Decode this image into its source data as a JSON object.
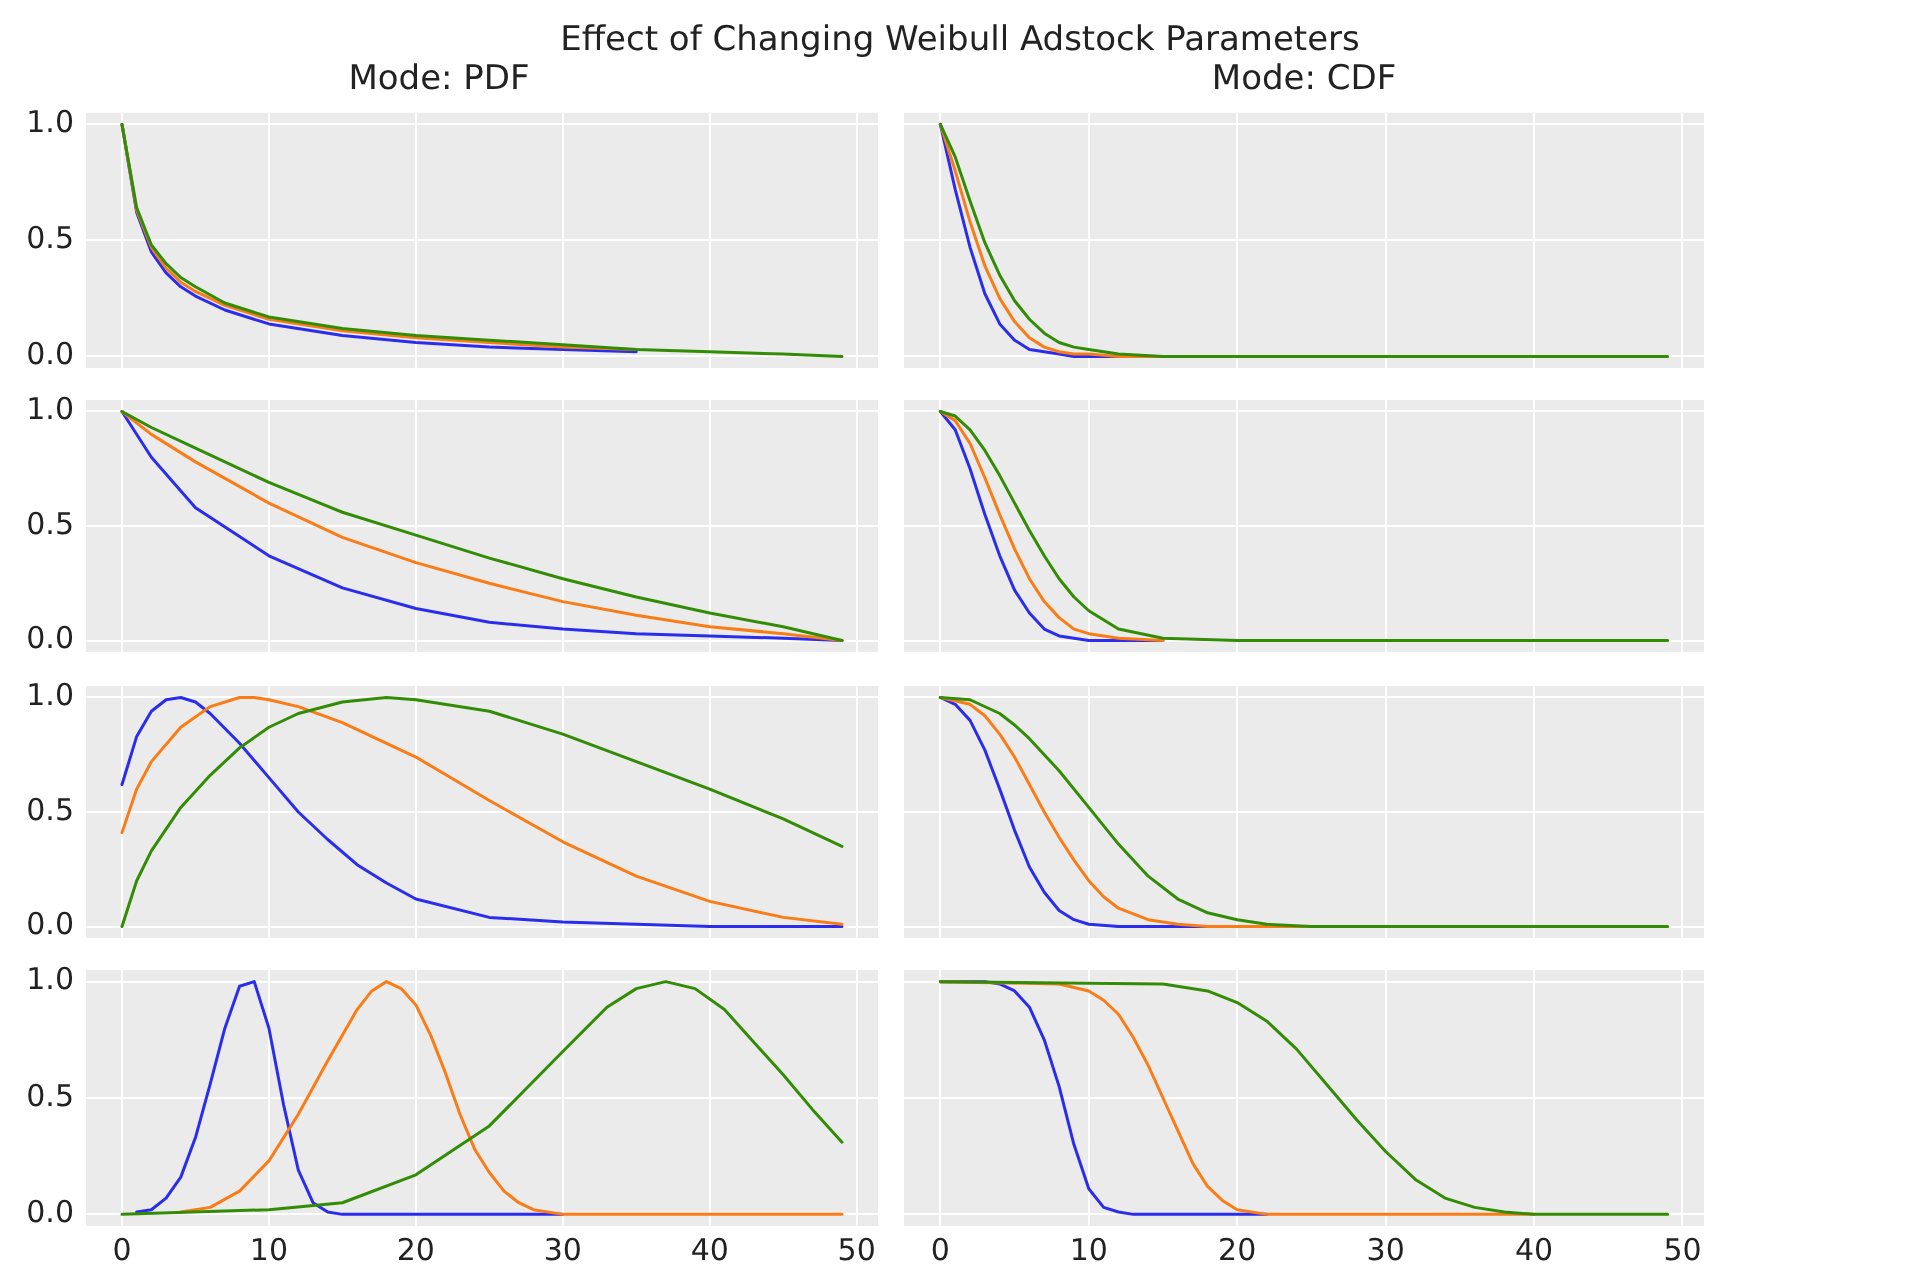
{
  "chart_data": [
    {
      "type": "line",
      "title": "Effect of Changing Weibull Adstock Parameters",
      "subtitle": "Mode: PDF",
      "xlim": [
        -2.45,
        51.45
      ],
      "ylim": [
        -0.05,
        1.05
      ],
      "xticks": [
        {
          "value": 0,
          "label": null
        },
        {
          "value": 10,
          "label": null
        },
        {
          "value": 20,
          "label": null
        },
        {
          "value": 30,
          "label": null
        },
        {
          "value": 40,
          "label": null
        },
        {
          "value": 50,
          "label": null
        }
      ],
      "yticks": [
        {
          "value": 0,
          "label": "0.0"
        },
        {
          "value": 0.5,
          "label": "0.5"
        },
        {
          "value": 1,
          "label": "1.0"
        }
      ],
      "grid": true,
      "legend": false,
      "marker": "none",
      "line_style": "solid",
      "tick_labels": "y",
      "x": [
        0,
        1,
        2,
        3,
        4,
        5,
        7,
        10,
        15,
        20,
        25,
        30,
        35,
        40,
        45,
        49
      ],
      "series": [
        {
          "color": "#2a2eec",
          "values": [
            1,
            0.62,
            0.45,
            0.36,
            0.3,
            0.26,
            0.2,
            0.14,
            0.09,
            0.06,
            0.04,
            0.03,
            0.02,
            null,
            null,
            null
          ]
        },
        {
          "color": "#fa7c17",
          "values": [
            1,
            0.63,
            0.47,
            0.38,
            0.32,
            0.28,
            0.22,
            0.16,
            0.11,
            0.08,
            0.06,
            0.04,
            0.03,
            null,
            null,
            null
          ]
        },
        {
          "color": "#328c06",
          "values": [
            1,
            0.64,
            0.48,
            0.4,
            0.34,
            0.3,
            0.23,
            0.17,
            0.12,
            0.09,
            0.07,
            0.05,
            0.03,
            0.02,
            0.01,
            0
          ]
        }
      ]
    },
    {
      "type": "line",
      "title": "Mode: CDF",
      "xlim": [
        -2.45,
        51.45
      ],
      "ylim": [
        -0.05,
        1.05
      ],
      "xticks": [
        {
          "value": 0,
          "label": null
        },
        {
          "value": 10,
          "label": null
        },
        {
          "value": 20,
          "label": null
        },
        {
          "value": 30,
          "label": null
        },
        {
          "value": 40,
          "label": null
        },
        {
          "value": 50,
          "label": null
        }
      ],
      "yticks": [
        {
          "value": 0,
          "label": null
        },
        {
          "value": 0.5,
          "label": null
        },
        {
          "value": 1,
          "label": null
        }
      ],
      "grid": true,
      "legend": false,
      "marker": "none",
      "line_style": "solid",
      "tick_labels": false,
      "x": [
        0,
        1,
        2,
        3,
        4,
        5,
        6,
        7,
        8,
        9,
        10,
        12,
        15,
        20,
        30,
        40,
        49
      ],
      "series": [
        {
          "color": "#2a2eec",
          "values": [
            1,
            0.72,
            0.47,
            0.27,
            0.14,
            0.07,
            0.03,
            0.02,
            0.01,
            0,
            0,
            0,
            0,
            null,
            null,
            null,
            null
          ]
        },
        {
          "color": "#fa7c17",
          "values": [
            1,
            0.8,
            0.58,
            0.39,
            0.25,
            0.15,
            0.08,
            0.04,
            0.02,
            0.01,
            0.01,
            0,
            0,
            null,
            null,
            null,
            null
          ]
        },
        {
          "color": "#328c06",
          "values": [
            1,
            0.86,
            0.67,
            0.49,
            0.35,
            0.24,
            0.16,
            0.1,
            0.06,
            0.04,
            0.03,
            0.01,
            0,
            0,
            0,
            0,
            0
          ]
        }
      ]
    },
    {
      "type": "line",
      "xlim": [
        -2.45,
        51.45
      ],
      "ylim": [
        -0.05,
        1.05
      ],
      "xticks": [
        {
          "value": 0,
          "label": null
        },
        {
          "value": 10,
          "label": null
        },
        {
          "value": 20,
          "label": null
        },
        {
          "value": 30,
          "label": null
        },
        {
          "value": 40,
          "label": null
        },
        {
          "value": 50,
          "label": null
        }
      ],
      "yticks": [
        {
          "value": 0,
          "label": "0.0"
        },
        {
          "value": 0.5,
          "label": "0.5"
        },
        {
          "value": 1,
          "label": "1.0"
        }
      ],
      "grid": true,
      "legend": false,
      "marker": "none",
      "line_style": "solid",
      "tick_labels": "y",
      "x": [
        0,
        2,
        5,
        10,
        15,
        20,
        25,
        30,
        35,
        40,
        45,
        49
      ],
      "series": [
        {
          "color": "#2a2eec",
          "values": [
            1,
            0.8,
            0.58,
            0.37,
            0.23,
            0.14,
            0.08,
            0.05,
            0.03,
            0.02,
            0.01,
            0
          ]
        },
        {
          "color": "#fa7c17",
          "values": [
            1,
            0.9,
            0.78,
            0.6,
            0.45,
            0.34,
            0.25,
            0.17,
            0.11,
            0.06,
            0.03,
            0
          ]
        },
        {
          "color": "#328c06",
          "values": [
            1,
            0.93,
            0.84,
            0.69,
            0.56,
            0.46,
            0.36,
            0.27,
            0.19,
            0.12,
            0.06,
            0
          ]
        }
      ]
    },
    {
      "type": "line",
      "xlim": [
        -2.45,
        51.45
      ],
      "ylim": [
        -0.05,
        1.05
      ],
      "xticks": [
        {
          "value": 0,
          "label": null
        },
        {
          "value": 10,
          "label": null
        },
        {
          "value": 20,
          "label": null
        },
        {
          "value": 30,
          "label": null
        },
        {
          "value": 40,
          "label": null
        },
        {
          "value": 50,
          "label": null
        }
      ],
      "yticks": [
        {
          "value": 0,
          "label": null
        },
        {
          "value": 0.5,
          "label": null
        },
        {
          "value": 1,
          "label": null
        }
      ],
      "grid": true,
      "legend": false,
      "marker": "none",
      "line_style": "solid",
      "tick_labels": false,
      "x": [
        0,
        1,
        2,
        3,
        4,
        5,
        6,
        7,
        8,
        9,
        10,
        12,
        15,
        20,
        30,
        40,
        49
      ],
      "series": [
        {
          "color": "#2a2eec",
          "values": [
            1,
            0.92,
            0.75,
            0.55,
            0.37,
            0.22,
            0.12,
            0.05,
            0.02,
            0.01,
            0,
            0,
            0,
            null,
            null,
            null,
            null
          ]
        },
        {
          "color": "#fa7c17",
          "values": [
            1,
            0.96,
            0.86,
            0.71,
            0.55,
            0.4,
            0.27,
            0.17,
            0.1,
            0.05,
            0.03,
            0.01,
            0,
            null,
            null,
            null,
            null
          ]
        },
        {
          "color": "#328c06",
          "values": [
            1,
            0.98,
            0.92,
            0.83,
            0.72,
            0.6,
            0.48,
            0.37,
            0.27,
            0.19,
            0.13,
            0.05,
            0.01,
            0,
            0,
            0,
            0
          ]
        }
      ]
    },
    {
      "type": "line",
      "xlim": [
        -2.45,
        51.45
      ],
      "ylim": [
        -0.05,
        1.05
      ],
      "xticks": [
        {
          "value": 0,
          "label": null
        },
        {
          "value": 10,
          "label": null
        },
        {
          "value": 20,
          "label": null
        },
        {
          "value": 30,
          "label": null
        },
        {
          "value": 40,
          "label": null
        },
        {
          "value": 50,
          "label": null
        }
      ],
      "yticks": [
        {
          "value": 0,
          "label": "0.0"
        },
        {
          "value": 0.5,
          "label": "0.5"
        },
        {
          "value": 1,
          "label": "1.0"
        }
      ],
      "grid": true,
      "legend": false,
      "marker": "none",
      "line_style": "solid",
      "tick_labels": "y",
      "series": [
        {
          "color": "#2a2eec",
          "x": [
            0,
            1,
            2,
            3,
            4,
            5,
            6,
            8,
            10,
            12,
            14,
            16,
            18,
            20,
            25,
            30,
            35,
            40,
            49
          ],
          "values": [
            0.62,
            0.83,
            0.94,
            0.99,
            1,
            0.98,
            0.93,
            0.8,
            0.65,
            0.5,
            0.38,
            0.27,
            0.19,
            0.12,
            0.04,
            0.02,
            0.01,
            0,
            0
          ]
        },
        {
          "color": "#fa7c17",
          "x": [
            0,
            1,
            2,
            4,
            6,
            8,
            9,
            10,
            12,
            15,
            20,
            25,
            30,
            35,
            40,
            45,
            49
          ],
          "values": [
            0.41,
            0.6,
            0.72,
            0.87,
            0.96,
            1,
            1,
            0.99,
            0.96,
            0.89,
            0.74,
            0.55,
            0.37,
            0.22,
            0.11,
            0.04,
            0.01
          ]
        },
        {
          "color": "#328c06",
          "x": [
            0,
            1,
            2,
            4,
            6,
            8,
            10,
            12,
            15,
            18,
            20,
            25,
            30,
            35,
            40,
            45,
            49
          ],
          "values": [
            0,
            0.2,
            0.33,
            0.52,
            0.66,
            0.78,
            0.87,
            0.93,
            0.98,
            1,
            0.99,
            0.94,
            0.84,
            0.72,
            0.6,
            0.47,
            0.35
          ]
        }
      ]
    },
    {
      "type": "line",
      "xlim": [
        -2.45,
        51.45
      ],
      "ylim": [
        -0.05,
        1.05
      ],
      "xticks": [
        {
          "value": 0,
          "label": null
        },
        {
          "value": 10,
          "label": null
        },
        {
          "value": 20,
          "label": null
        },
        {
          "value": 30,
          "label": null
        },
        {
          "value": 40,
          "label": null
        },
        {
          "value": 50,
          "label": null
        }
      ],
      "yticks": [
        {
          "value": 0,
          "label": null
        },
        {
          "value": 0.5,
          "label": null
        },
        {
          "value": 1,
          "label": null
        }
      ],
      "grid": true,
      "legend": false,
      "marker": "none",
      "line_style": "solid",
      "tick_labels": false,
      "series": [
        {
          "color": "#2a2eec",
          "x": [
            0,
            1,
            2,
            3,
            4,
            5,
            6,
            7,
            8,
            9,
            10,
            12,
            18
          ],
          "values": [
            1,
            0.97,
            0.9,
            0.77,
            0.6,
            0.42,
            0.26,
            0.15,
            0.07,
            0.03,
            0.01,
            0,
            0
          ]
        },
        {
          "color": "#fa7c17",
          "x": [
            0,
            2,
            3,
            4,
            5,
            6,
            7,
            8,
            9,
            10,
            11,
            12,
            14,
            16,
            18,
            25
          ],
          "values": [
            1,
            0.97,
            0.92,
            0.84,
            0.74,
            0.62,
            0.5,
            0.39,
            0.29,
            0.2,
            0.13,
            0.08,
            0.03,
            0.01,
            0,
            0
          ]
        },
        {
          "color": "#328c06",
          "x": [
            0,
            2,
            4,
            5,
            6,
            8,
            10,
            12,
            14,
            16,
            18,
            20,
            22,
            25,
            49
          ],
          "values": [
            1,
            0.99,
            0.93,
            0.88,
            0.82,
            0.68,
            0.52,
            0.36,
            0.22,
            0.12,
            0.06,
            0.03,
            0.01,
            0,
            0
          ]
        }
      ]
    },
    {
      "type": "line",
      "xlim": [
        -2.45,
        51.45
      ],
      "ylim": [
        -0.05,
        1.05
      ],
      "xticks": [
        0,
        10,
        20,
        30,
        40,
        50
      ],
      "yticks": [
        {
          "value": 0,
          "label": "0.0"
        },
        {
          "value": 0.5,
          "label": "0.5"
        },
        {
          "value": 1,
          "label": "1.0"
        }
      ],
      "grid": true,
      "legend": false,
      "marker": "none",
      "line_style": "solid",
      "series": [
        {
          "color": "#2a2eec",
          "x": [
            1,
            2,
            3,
            4,
            5,
            6,
            7,
            8,
            9,
            10,
            11,
            12,
            13,
            14,
            15,
            30
          ],
          "values": [
            0.01,
            0.02,
            0.07,
            0.16,
            0.33,
            0.56,
            0.8,
            0.98,
            1,
            0.8,
            0.47,
            0.19,
            0.05,
            0.01,
            0,
            0
          ]
        },
        {
          "color": "#fa7c17",
          "x": [
            4,
            6,
            8,
            10,
            12,
            14,
            16,
            17,
            18,
            19,
            20,
            21,
            22,
            23,
            24,
            25,
            26,
            27,
            28,
            30,
            49
          ],
          "values": [
            0.01,
            0.03,
            0.1,
            0.23,
            0.43,
            0.66,
            0.88,
            0.96,
            1,
            0.97,
            0.9,
            0.77,
            0.61,
            0.43,
            0.28,
            0.18,
            0.1,
            0.05,
            0.02,
            0,
            0
          ]
        },
        {
          "color": "#328c06",
          "x": [
            0,
            10,
            15,
            20,
            25,
            30,
            33,
            35,
            37,
            39,
            41,
            43,
            45,
            47,
            49
          ],
          "values": [
            0,
            0.02,
            0.05,
            0.17,
            0.38,
            0.7,
            0.89,
            0.97,
            1,
            0.97,
            0.88,
            0.74,
            0.6,
            0.45,
            0.31
          ]
        }
      ]
    },
    {
      "type": "line",
      "xlim": [
        -2.45,
        51.45
      ],
      "ylim": [
        -0.05,
        1.05
      ],
      "xticks": [
        0,
        10,
        20,
        30,
        40,
        50
      ],
      "yticks": [
        {
          "value": 0,
          "label": null
        },
        {
          "value": 0.5,
          "label": null
        },
        {
          "value": 1,
          "label": null
        }
      ],
      "grid": true,
      "legend": false,
      "marker": "none",
      "line_style": "solid",
      "tick_labels": "x",
      "series": [
        {
          "color": "#2a2eec",
          "x": [
            0,
            3,
            4,
            5,
            6,
            7,
            8,
            9,
            10,
            11,
            12,
            13,
            22
          ],
          "values": [
            1,
            1,
            0.99,
            0.96,
            0.89,
            0.75,
            0.55,
            0.3,
            0.11,
            0.03,
            0.01,
            0,
            0
          ]
        },
        {
          "color": "#fa7c17",
          "x": [
            0,
            8,
            10,
            11,
            12,
            13,
            14,
            15,
            16,
            17,
            18,
            19,
            20,
            22,
            40
          ],
          "values": [
            1,
            0.99,
            0.96,
            0.92,
            0.86,
            0.76,
            0.64,
            0.5,
            0.36,
            0.22,
            0.12,
            0.06,
            0.02,
            0,
            0
          ]
        },
        {
          "color": "#328c06",
          "x": [
            0,
            15,
            18,
            20,
            22,
            24,
            26,
            28,
            30,
            32,
            34,
            36,
            38,
            40,
            49
          ],
          "values": [
            1,
            0.99,
            0.96,
            0.91,
            0.83,
            0.71,
            0.56,
            0.41,
            0.27,
            0.15,
            0.07,
            0.03,
            0.01,
            0,
            0
          ]
        }
      ]
    }
  ]
}
